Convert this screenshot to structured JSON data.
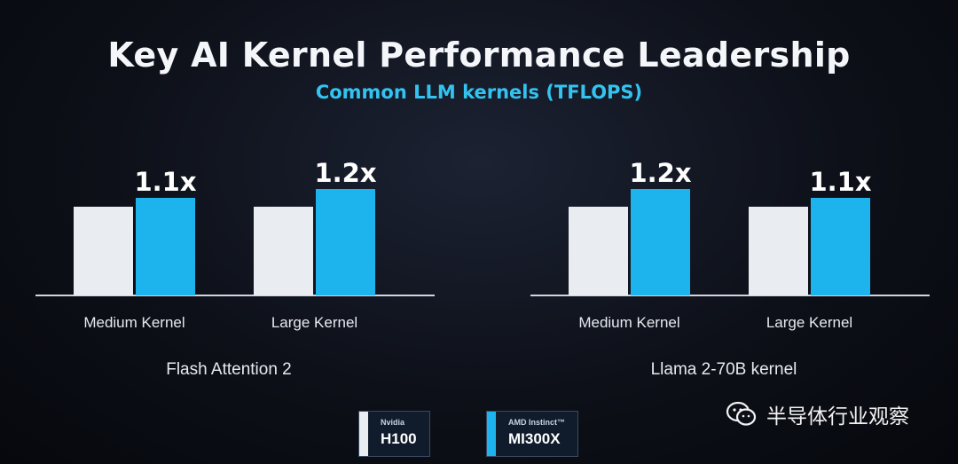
{
  "title": "Key AI Kernel Performance Leadership",
  "subtitle": "Common LLM kernels (TFLOPS)",
  "colors": {
    "nvidia": "#e9ecf0",
    "amd": "#1db4ee",
    "accent": "#33c3f0"
  },
  "legend": [
    {
      "vendor": "Nvidia",
      "product": "H100",
      "color": "#e9ecf0"
    },
    {
      "vendor": "AMD Instinct™",
      "product": "MI300X",
      "color": "#1db4ee"
    }
  ],
  "watermark": {
    "icon": "wechat-icon",
    "text": "半导体行业观察"
  },
  "chart_data": [
    {
      "type": "bar",
      "xlabel": "Flash Attention 2",
      "categories": [
        "Medium Kernel",
        "Large Kernel"
      ],
      "series": [
        {
          "name": "H100",
          "values": [
            1.0,
            1.0
          ]
        },
        {
          "name": "MI300X",
          "values": [
            1.1,
            1.2
          ]
        }
      ],
      "annotations": [
        "1.1x",
        "1.2x"
      ],
      "ylim": [
        0,
        1.3
      ],
      "grid": false
    },
    {
      "type": "bar",
      "xlabel": "Llama 2-70B kernel",
      "categories": [
        "Medium Kernel",
        "Large Kernel"
      ],
      "series": [
        {
          "name": "H100",
          "values": [
            1.0,
            1.0
          ]
        },
        {
          "name": "MI300X",
          "values": [
            1.2,
            1.1
          ]
        }
      ],
      "annotations": [
        "1.2x",
        "1.1x"
      ],
      "ylim": [
        0,
        1.3
      ],
      "grid": false
    }
  ]
}
